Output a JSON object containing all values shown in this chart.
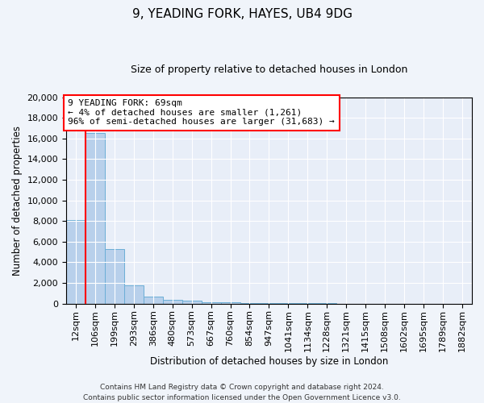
{
  "title1": "9, YEADING FORK, HAYES, UB4 9DG",
  "title2": "Size of property relative to detached houses in London",
  "xlabel": "Distribution of detached houses by size in London",
  "ylabel": "Number of detached properties",
  "bar_labels": [
    "12sqm",
    "106sqm",
    "199sqm",
    "293sqm",
    "386sqm",
    "480sqm",
    "573sqm",
    "667sqm",
    "760sqm",
    "854sqm",
    "947sqm",
    "1041sqm",
    "1134sqm",
    "1228sqm",
    "1321sqm",
    "1415sqm",
    "1508sqm",
    "1602sqm",
    "1695sqm",
    "1789sqm",
    "1882sqm"
  ],
  "bar_values": [
    8100,
    16500,
    5300,
    1800,
    700,
    400,
    250,
    170,
    120,
    60,
    40,
    30,
    20,
    15,
    10,
    8,
    6,
    5,
    4,
    3,
    2
  ],
  "bar_color": "#b8d0eb",
  "bar_edge_color": "#6baed6",
  "vline_color": "red",
  "annotation_text": "9 YEADING FORK: 69sqm\n← 4% of detached houses are smaller (1,261)\n96% of semi-detached houses are larger (31,683) →",
  "annotation_box_color": "white",
  "annotation_box_edge": "red",
  "ylim": [
    0,
    20000
  ],
  "yticks": [
    0,
    2000,
    4000,
    6000,
    8000,
    10000,
    12000,
    14000,
    16000,
    18000,
    20000
  ],
  "footer1": "Contains HM Land Registry data © Crown copyright and database right 2024.",
  "footer2": "Contains public sector information licensed under the Open Government Licence v3.0.",
  "bg_color": "#f0f4fa",
  "plot_bg_color": "#e8eef8",
  "title1_fontsize": 11,
  "title2_fontsize": 9
}
